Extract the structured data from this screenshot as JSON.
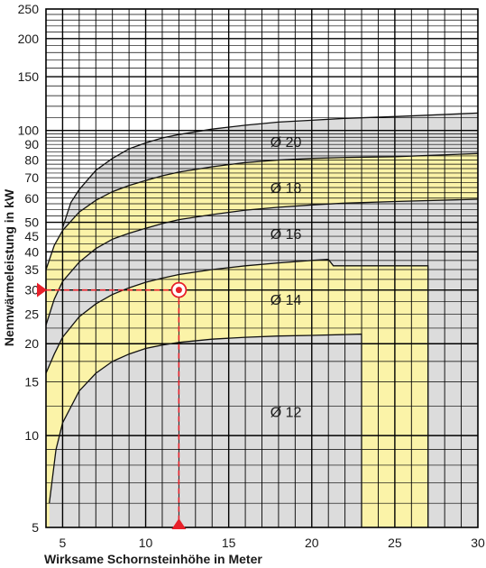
{
  "chart_data": {
    "type": "area",
    "title": "",
    "xlabel": "Wirksame Schornsteinhöhe in Meter",
    "ylabel": "Nennwärmeleistung in kW",
    "x_scale": "linear",
    "y_scale": "log",
    "xlim": [
      4,
      30
    ],
    "ylim": [
      5,
      250
    ],
    "x_ticks": [
      5,
      10,
      15,
      20,
      25,
      30
    ],
    "y_ticks": [
      5,
      10,
      15,
      20,
      25,
      30,
      35,
      40,
      45,
      50,
      60,
      70,
      80,
      90,
      100,
      150,
      200,
      250
    ],
    "grid": true,
    "zones": [
      {
        "name": "Ø 12",
        "label_at": [
          17.5,
          12
        ],
        "fill": "#dcdcdc",
        "upper": {
          "x": [
            4.2,
            4.6,
            5.0,
            6.0,
            7.0,
            8.0,
            9.0,
            10.0,
            11.0,
            12.0,
            14.0,
            16.0,
            18.0,
            20.0,
            23.0
          ],
          "y": [
            6,
            9,
            11,
            14,
            16,
            17.5,
            18.5,
            19.3,
            19.8,
            20.2,
            20.7,
            21,
            21.2,
            21.3,
            21.5
          ]
        },
        "right_edge": 23
      },
      {
        "name": "Ø 14",
        "label_at": [
          17.5,
          28
        ],
        "fill": "#fbf3a8",
        "upper": {
          "x": [
            4,
            4.5,
            5,
            6,
            7,
            8,
            9,
            10,
            11,
            12,
            14,
            16,
            18,
            20,
            21,
            21.3,
            27
          ],
          "y": [
            16,
            18.5,
            21,
            24.5,
            27,
            29,
            30.5,
            31.8,
            32.8,
            33.7,
            35,
            36,
            36.8,
            37.5,
            37.8,
            36,
            36
          ]
        },
        "right_edge": 27
      },
      {
        "name": "Ø 16",
        "label_at": [
          17.5,
          46
        ],
        "fill": "#dcdcdc",
        "upper": {
          "x": [
            4,
            4.5,
            5,
            6,
            7,
            8,
            9,
            10,
            11,
            12,
            14,
            16,
            18,
            20,
            22,
            25,
            30
          ],
          "y": [
            23,
            28,
            32,
            37,
            41,
            44,
            46,
            47.8,
            49.5,
            51,
            53,
            54.8,
            56,
            57,
            57.8,
            58.5,
            59.5
          ]
        }
      },
      {
        "name": "Ø 18",
        "label_at": [
          17.5,
          65
        ],
        "fill": "#fbf3a8",
        "upper": {
          "x": [
            4,
            4.5,
            5,
            6,
            7,
            8,
            9,
            10,
            11,
            12,
            14,
            16,
            18,
            20,
            22,
            25,
            30
          ],
          "y": [
            35,
            42,
            47,
            54,
            59,
            63,
            66,
            68.5,
            71,
            73,
            76,
            78.5,
            80,
            81,
            81.5,
            82,
            84
          ]
        }
      },
      {
        "name": "Ø 20",
        "label_at": [
          17.5,
          92
        ],
        "fill": "#dcdcdc",
        "upper": {
          "x": [
            5,
            5.5,
            6,
            7,
            8,
            9,
            10,
            11,
            12,
            14,
            16,
            18,
            20,
            22,
            25,
            30
          ],
          "y": [
            48,
            58,
            64,
            74,
            81,
            87,
            91,
            94.5,
            97,
            101,
            104,
            106.5,
            108,
            109.5,
            111,
            114
          ]
        }
      }
    ],
    "annotations": [
      {
        "type": "reference-point",
        "x": 12,
        "y": 30,
        "color": "#e8202a",
        "dashed_guides": true,
        "arrow_x_axis": 12,
        "arrow_y_axis": 30
      }
    ]
  }
}
